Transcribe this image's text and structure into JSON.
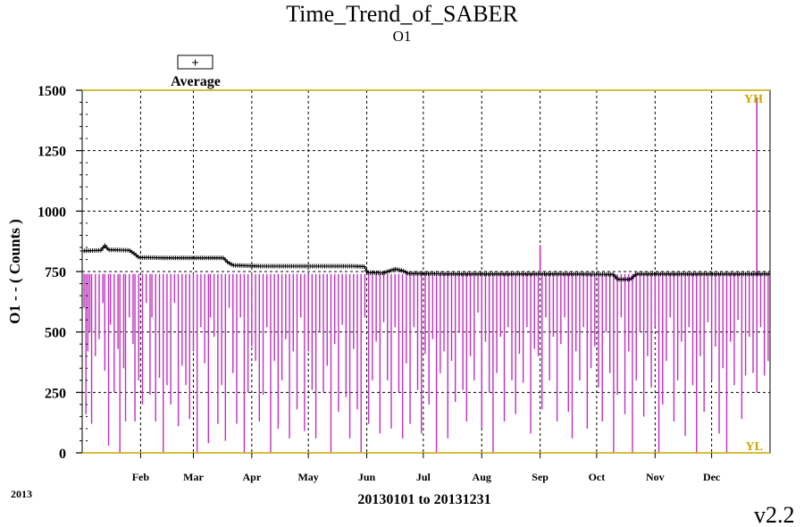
{
  "chart_data": {
    "type": "line",
    "title": "Time_Trend_of_SABER",
    "subtitle": "O1",
    "ylabel": "O1 - - ( Counts )",
    "xlabel": "20130101 to 20131231",
    "year_label": "2013",
    "version": "v2.2",
    "legend": {
      "symbol": "+",
      "label": "Average",
      "placement": "top-left"
    },
    "ylim": [
      0,
      1500
    ],
    "yticks": [
      "0",
      "250",
      "500",
      "750",
      "1000",
      "1250",
      "1500"
    ],
    "x_range_days": [
      0,
      365
    ],
    "months": [
      {
        "label": "Feb",
        "day": 31
      },
      {
        "label": "Mar",
        "day": 59
      },
      {
        "label": "Apr",
        "day": 90
      },
      {
        "label": "May",
        "day": 120
      },
      {
        "label": "Jun",
        "day": 151
      },
      {
        "label": "Jul",
        "day": 181
      },
      {
        "label": "Aug",
        "day": 212
      },
      {
        "label": "Sep",
        "day": 243
      },
      {
        "label": "Oct",
        "day": 273
      },
      {
        "label": "Nov",
        "day": 304
      },
      {
        "label": "Dec",
        "day": 334
      }
    ],
    "limits": [
      {
        "name": "YH",
        "value": 1500,
        "color": "#c8a800"
      },
      {
        "name": "YL",
        "value": 0,
        "color": "#c8a800"
      }
    ],
    "grid": true,
    "series": [
      {
        "name": "Average",
        "style": "plus-markers",
        "color": "#000000",
        "points": [
          [
            0,
            835
          ],
          [
            10,
            838
          ],
          [
            12,
            858
          ],
          [
            14,
            840
          ],
          [
            25,
            838
          ],
          [
            28,
            822
          ],
          [
            30,
            808
          ],
          [
            50,
            806
          ],
          [
            58,
            806
          ],
          [
            75,
            806
          ],
          [
            77,
            790
          ],
          [
            80,
            776
          ],
          [
            95,
            772
          ],
          [
            120,
            772
          ],
          [
            145,
            772
          ],
          [
            150,
            770
          ],
          [
            151,
            746
          ],
          [
            160,
            744
          ],
          [
            162,
            750
          ],
          [
            166,
            760
          ],
          [
            170,
            754
          ],
          [
            173,
            742
          ],
          [
            200,
            740
          ],
          [
            230,
            740
          ],
          [
            260,
            740
          ],
          [
            282,
            738
          ],
          [
            284,
            718
          ],
          [
            291,
            718
          ],
          [
            294,
            740
          ],
          [
            320,
            740
          ],
          [
            365,
            740
          ]
        ]
      },
      {
        "name": "O1",
        "style": "spikes",
        "color": "#c030c0",
        "baseline": 740,
        "drops": [
          [
            1,
            600
          ],
          [
            2,
            160
          ],
          [
            3,
            420
          ],
          [
            4,
            500
          ],
          [
            5,
            120
          ],
          [
            7,
            400
          ],
          [
            9,
            470
          ],
          [
            11,
            620
          ],
          [
            12,
            340
          ],
          [
            14,
            30
          ],
          [
            15,
            530
          ],
          [
            17,
            250
          ],
          [
            19,
            430
          ],
          [
            20,
            0
          ],
          [
            22,
            350
          ],
          [
            23,
            130
          ],
          [
            25,
            560
          ],
          [
            27,
            450
          ],
          [
            28,
            130
          ],
          [
            30,
            300
          ],
          [
            32,
            200
          ],
          [
            34,
            620
          ],
          [
            36,
            240
          ],
          [
            37,
            560
          ],
          [
            39,
            130
          ],
          [
            41,
            310
          ],
          [
            43,
            0
          ],
          [
            45,
            280
          ],
          [
            47,
            200
          ],
          [
            49,
            620
          ],
          [
            51,
            110
          ],
          [
            53,
            360
          ],
          [
            55,
            280
          ],
          [
            57,
            140
          ],
          [
            59,
            420
          ],
          [
            61,
            0
          ],
          [
            63,
            520
          ],
          [
            65,
            370
          ],
          [
            67,
            40
          ],
          [
            68,
            560
          ],
          [
            70,
            480
          ],
          [
            72,
            120
          ],
          [
            74,
            280
          ],
          [
            76,
            50
          ],
          [
            78,
            600
          ],
          [
            80,
            330
          ],
          [
            82,
            120
          ],
          [
            84,
            560
          ],
          [
            86,
            0
          ],
          [
            88,
            250
          ],
          [
            90,
            440
          ],
          [
            92,
            380
          ],
          [
            94,
            130
          ],
          [
            96,
            240
          ],
          [
            98,
            520
          ],
          [
            100,
            0
          ],
          [
            102,
            380
          ],
          [
            104,
            100
          ],
          [
            106,
            300
          ],
          [
            108,
            470
          ],
          [
            110,
            60
          ],
          [
            112,
            420
          ],
          [
            114,
            180
          ],
          [
            116,
            560
          ],
          [
            118,
            90
          ],
          [
            120,
            420
          ],
          [
            122,
            260
          ],
          [
            124,
            60
          ],
          [
            126,
            500
          ],
          [
            128,
            250
          ],
          [
            130,
            360
          ],
          [
            132,
            0
          ],
          [
            134,
            450
          ],
          [
            136,
            170
          ],
          [
            138,
            530
          ],
          [
            140,
            230
          ],
          [
            142,
            60
          ],
          [
            144,
            430
          ],
          [
            146,
            180
          ],
          [
            148,
            0
          ],
          [
            150,
            560
          ],
          [
            152,
            120
          ],
          [
            154,
            300
          ],
          [
            156,
            460
          ],
          [
            158,
            80
          ],
          [
            160,
            540
          ],
          [
            162,
            300
          ],
          [
            164,
            100
          ],
          [
            166,
            520
          ],
          [
            168,
            250
          ],
          [
            170,
            60
          ],
          [
            172,
            370
          ],
          [
            174,
            120
          ],
          [
            176,
            520
          ],
          [
            178,
            260
          ],
          [
            180,
            80
          ],
          [
            182,
            410
          ],
          [
            184,
            200
          ],
          [
            186,
            470
          ],
          [
            188,
            0
          ],
          [
            190,
            330
          ],
          [
            192,
            420
          ],
          [
            194,
            60
          ],
          [
            196,
            380
          ],
          [
            198,
            210
          ],
          [
            200,
            500
          ],
          [
            202,
            260
          ],
          [
            204,
            130
          ],
          [
            206,
            400
          ],
          [
            208,
            300
          ],
          [
            210,
            580
          ],
          [
            212,
            100
          ],
          [
            214,
            460
          ],
          [
            216,
            250
          ],
          [
            218,
            0
          ],
          [
            220,
            330
          ],
          [
            222,
            480
          ],
          [
            224,
            130
          ],
          [
            226,
            520
          ],
          [
            228,
            300
          ],
          [
            230,
            160
          ],
          [
            232,
            410
          ],
          [
            234,
            290
          ],
          [
            236,
            520
          ],
          [
            238,
            80
          ],
          [
            240,
            430
          ],
          [
            242,
            400
          ],
          [
            244,
            180
          ],
          [
            246,
            560
          ],
          [
            248,
            300
          ],
          [
            250,
            480
          ],
          [
            252,
            130
          ],
          [
            254,
            450
          ],
          [
            256,
            560
          ],
          [
            258,
            170
          ],
          [
            260,
            60
          ],
          [
            262,
            420
          ],
          [
            264,
            300
          ],
          [
            266,
            520
          ],
          [
            268,
            100
          ],
          [
            270,
            350
          ],
          [
            272,
            440
          ],
          [
            274,
            270
          ],
          [
            276,
            130
          ],
          [
            278,
            500
          ],
          [
            280,
            330
          ],
          [
            282,
            0
          ],
          [
            284,
            240
          ],
          [
            286,
            560
          ],
          [
            288,
            160
          ],
          [
            290,
            420
          ],
          [
            292,
            0
          ],
          [
            294,
            300
          ],
          [
            296,
            500
          ],
          [
            298,
            150
          ],
          [
            300,
            400
          ],
          [
            302,
            270
          ],
          [
            304,
            520
          ],
          [
            306,
            0
          ],
          [
            308,
            200
          ],
          [
            310,
            380
          ],
          [
            312,
            560
          ],
          [
            314,
            130
          ],
          [
            316,
            300
          ],
          [
            318,
            460
          ],
          [
            320,
            70
          ],
          [
            322,
            520
          ],
          [
            324,
            280
          ],
          [
            326,
            0
          ],
          [
            328,
            400
          ],
          [
            330,
            170
          ],
          [
            332,
            540
          ],
          [
            334,
            300
          ],
          [
            336,
            440
          ],
          [
            338,
            80
          ],
          [
            340,
            350
          ],
          [
            342,
            0
          ],
          [
            344,
            460
          ],
          [
            346,
            280
          ],
          [
            348,
            550
          ],
          [
            350,
            140
          ],
          [
            352,
            320
          ],
          [
            354,
            480
          ],
          [
            356,
            330
          ],
          [
            358,
            250
          ],
          [
            360,
            520
          ],
          [
            362,
            320
          ],
          [
            364,
            380
          ]
        ],
        "peaks": [
          [
            243,
            860
          ],
          [
            358,
            1470
          ]
        ]
      }
    ]
  }
}
